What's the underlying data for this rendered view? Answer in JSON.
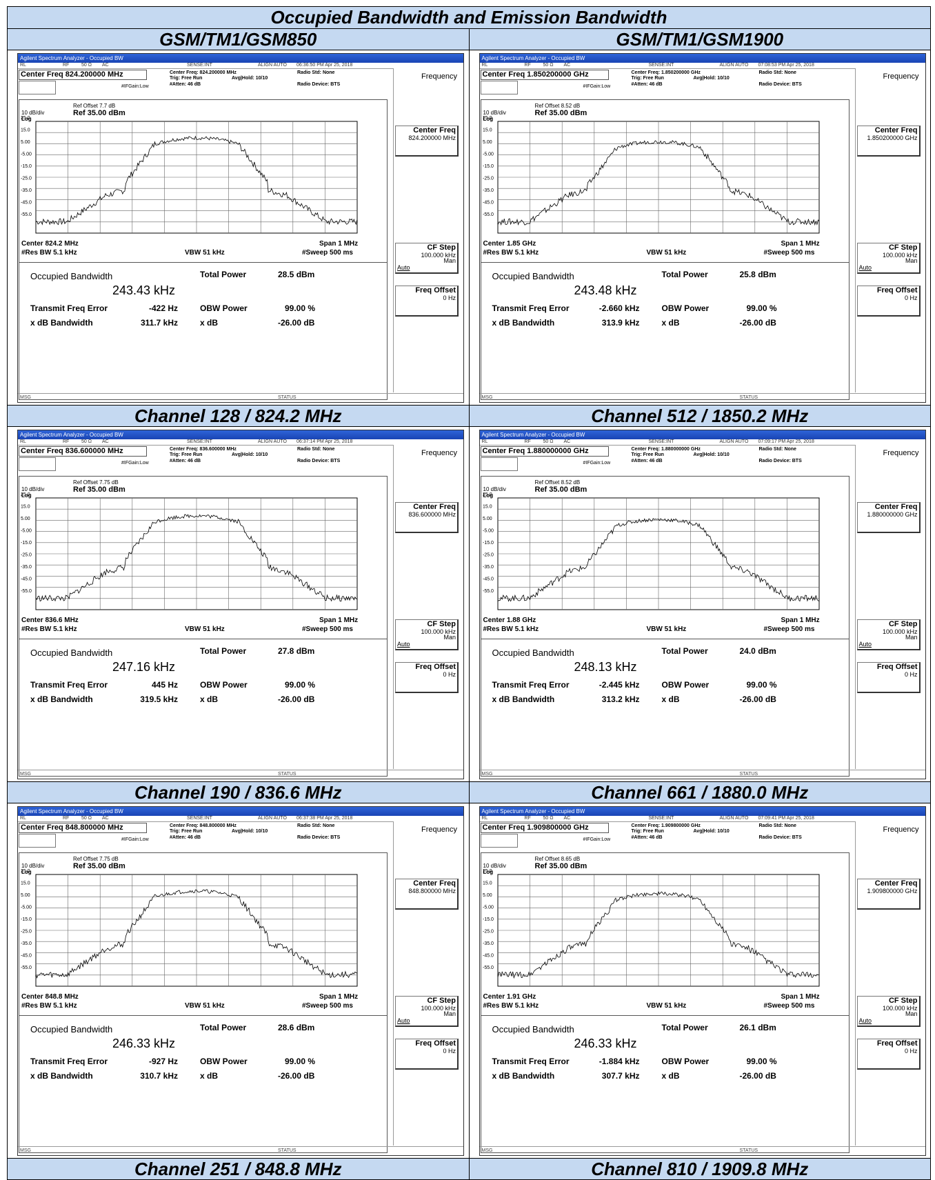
{
  "title": "Occupied Bandwidth and Emission Bandwidth",
  "columns": [
    "GSM/TM1/GSM850",
    "GSM/TM1/GSM1900"
  ],
  "common": {
    "window_title": "Agilent Spectrum Analyzer - Occupied BW",
    "status_rl": "RL",
    "status_rf": "RF",
    "status_ohm": "50 Ω",
    "status_ac": "AC",
    "status_sense": "SENSE:INT",
    "status_align": "ALIGN AUTO",
    "trig": "Trig: Free Run",
    "avg_hold": "Avg|Hold: 10/10",
    "if_gain": "#IFGain:Low",
    "atten": "#Atten: 46 dB",
    "radio_std": "Radio Std: None",
    "radio_device": "Radio Device: BTS",
    "scale": "10 dB/div",
    "log": "Log",
    "ref_level": "Ref 35.00 dBm",
    "res_bw": "#Res BW  5.1 kHz",
    "vbw": "VBW  51 kHz",
    "span": "Span 1 MHz",
    "sweep": "#Sweep  500 ms",
    "obw_label": "Occupied Bandwidth",
    "total_power_label": "Total Power",
    "tfe_label": "Transmit Freq Error",
    "obw_power_label": "OBW Power",
    "xdb_bw_label": "x dB Bandwidth",
    "xdb_label": "x dB",
    "obw_power_value": "99.00 %",
    "xdb_value": "-26.00 dB",
    "menu_title": "Frequency",
    "menu_center": "Center Freq",
    "menu_cfstep": "CF Step",
    "menu_cfstep_val": "100.000 kHz",
    "menu_auto": "Auto",
    "menu_man": "Man",
    "menu_freqoffset": "Freq Offset",
    "menu_freqoffset_val": "0 Hz",
    "msg": "MSG",
    "status": "STATUS",
    "y_ticks": [
      "25.0",
      "15.0",
      "5.00",
      "-5.00",
      "-15.0",
      "-25.0",
      "-35.0",
      "-45.0",
      "-55.0"
    ]
  },
  "panels": [
    {
      "caption": "Channel 128 / 824.2 MHz",
      "center_freq": "Center Freq 824.200000 MHz",
      "center_freq_short": "Center Freq: 824.200000 MHz",
      "time": "06:36:50 PM Apr 25, 2018",
      "ref_offset": "Ref Offset 7.7 dB",
      "center_bottom": "Center  824.2 MHz",
      "menu_center_val": "824.200000 MHz",
      "obw": "243.43 kHz",
      "total_power": "28.5 dBm",
      "tfe": "-422 Hz",
      "xdb_bw": "311.7 kHz",
      "peak_level": 15
    },
    {
      "caption": "Channel 512 / 1850.2 MHz",
      "center_freq": "Center Freq 1.850200000 GHz",
      "center_freq_short": "Center Freq: 1.850200000 GHz",
      "time": "07:08:53 PM Apr 25, 2018",
      "ref_offset": "Ref Offset 8.52 dB",
      "center_bottom": "Center  1.85 GHz",
      "menu_center_val": "1.850200000 GHz",
      "obw": "243.48 kHz",
      "total_power": "25.8 dBm",
      "tfe": "-2.660 kHz",
      "xdb_bw": "313.9 kHz",
      "peak_level": 12
    },
    {
      "caption": "Channel 190 / 836.6 MHz",
      "center_freq": "Center Freq 836.600000 MHz",
      "center_freq_short": "Center Freq: 836.600000 MHz",
      "time": "06:37:14 PM Apr 25, 2018",
      "ref_offset": "Ref Offset 7.75 dB",
      "center_bottom": "Center  836.6 MHz",
      "menu_center_val": "836.600000 MHz",
      "obw": "247.16 kHz",
      "total_power": "27.8 dBm",
      "tfe": "445 Hz",
      "xdb_bw": "319.5 kHz",
      "peak_level": 14
    },
    {
      "caption": "Channel 661 / 1880.0 MHz",
      "center_freq": "Center Freq 1.880000000 GHz",
      "center_freq_short": "Center Freq: 1.880000000 GHz",
      "time": "07:09:17 PM Apr 25, 2018",
      "ref_offset": "Ref Offset 8.52 dB",
      "center_bottom": "Center  1.88 GHz",
      "menu_center_val": "1.880000000 GHz",
      "obw": "248.13 kHz",
      "total_power": "24.0 dBm",
      "tfe": "-2.445 kHz",
      "xdb_bw": "313.2 kHz",
      "peak_level": 11
    },
    {
      "caption": "Channel 251 / 848.8 MHz",
      "center_freq": "Center Freq 848.800000 MHz",
      "center_freq_short": "Center Freq: 848.800000 MHz",
      "time": "06:37:38 PM Apr 25, 2018",
      "ref_offset": "Ref Offset 7.75 dB",
      "center_bottom": "Center  848.8 MHz",
      "menu_center_val": "848.800000 MHz",
      "obw": "246.33 kHz",
      "total_power": "28.6 dBm",
      "tfe": "-927 Hz",
      "xdb_bw": "310.7 kHz",
      "peak_level": 15
    },
    {
      "caption": "Channel 810 / 1909.8 MHz",
      "center_freq": "Center Freq 1.909800000 GHz",
      "center_freq_short": "Center Freq: 1.909800000 GHz",
      "time": "07:09:41 PM Apr 25, 2018",
      "ref_offset": "Ref Offset 8.65 dB",
      "center_bottom": "Center  1.91 GHz",
      "menu_center_val": "1.909800000 GHz",
      "obw": "246.33 kHz",
      "total_power": "26.1 dBm",
      "tfe": "-1.884 kHz",
      "xdb_bw": "307.7 kHz",
      "peak_level": 13
    }
  ]
}
